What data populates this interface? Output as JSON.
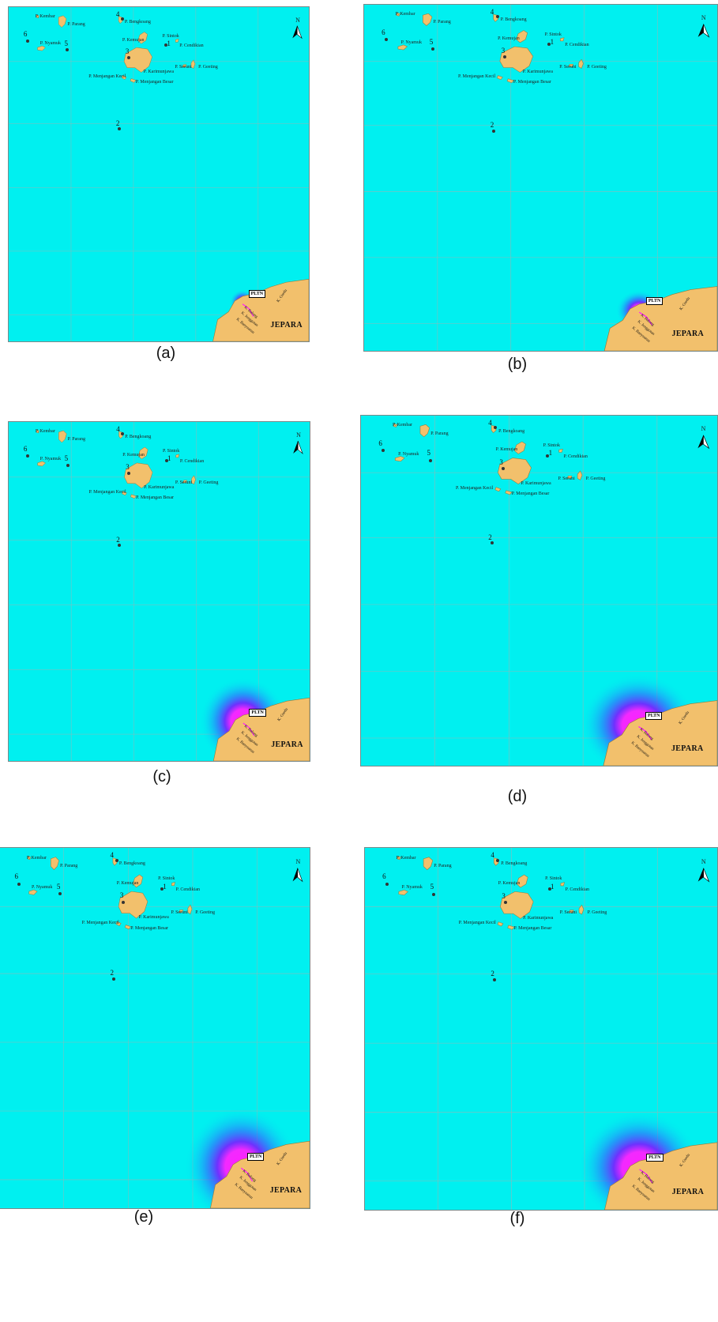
{
  "panels": [
    {
      "caption": "(a)",
      "plume": 0.06
    },
    {
      "caption": "(b)",
      "plume": 0.14
    },
    {
      "caption": "(c)",
      "plume": 0.42
    },
    {
      "caption": "(d)",
      "plume": 0.48
    },
    {
      "caption": "(e)",
      "plume": 0.55
    },
    {
      "caption": "(f)",
      "plume": 0.52
    }
  ],
  "labels": {
    "islands": [
      {
        "key": "kembar",
        "text": "P. Kembar"
      },
      {
        "key": "parang",
        "text": "P. Parang"
      },
      {
        "key": "bengkoang",
        "text": "P. Bengkoang"
      },
      {
        "key": "nyamuk",
        "text": "P. Nyamuk"
      },
      {
        "key": "kemujan",
        "text": "P. Kemujan"
      },
      {
        "key": "sintok",
        "text": "P. Sintok"
      },
      {
        "key": "cendikian",
        "text": "P. Cendikian"
      },
      {
        "key": "karimunjawa",
        "text": "P. Karimunjawa"
      },
      {
        "key": "menjangan_kecil",
        "text": "P. Menjangan Kecil"
      },
      {
        "key": "menjangan_besar",
        "text": "P. Menjangan Besar"
      },
      {
        "key": "seruni",
        "text": "P. Seruni"
      },
      {
        "key": "geleang",
        "text": "P. Geeting"
      }
    ],
    "stations": [
      "1",
      "2",
      "3",
      "4",
      "5",
      "6"
    ],
    "pltn": "PLTN",
    "jepara": "JEPARA",
    "rivers": [
      "K. Gurdu",
      "K. Balong",
      "K. Jenggotan",
      "K. Banyuarun"
    ],
    "north": "N"
  },
  "colors": {
    "sea": "#00f0f0",
    "land": "#f2c06c",
    "plume_core": "#ff1fff",
    "plume_mid": "#7a1cff",
    "plume_outer": "#3a5aff"
  }
}
